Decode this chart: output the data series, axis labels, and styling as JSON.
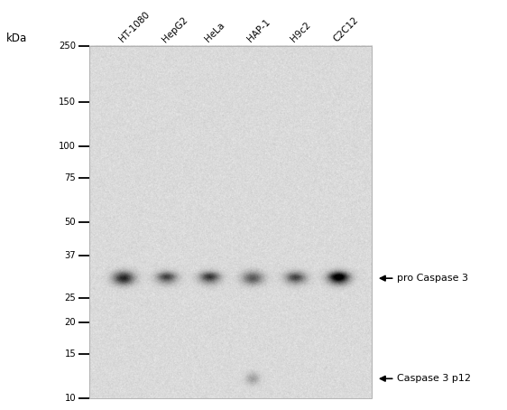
{
  "fig_width": 5.62,
  "fig_height": 4.54,
  "dpi": 100,
  "lane_labels": [
    "HT-1080",
    "HepG2",
    "HeLa",
    "HAP-1",
    "H9c2",
    "C2C12"
  ],
  "kda_label": "kDa",
  "mw_markers": [
    250,
    150,
    100,
    75,
    50,
    37,
    25,
    20,
    15,
    10
  ],
  "annotation1_text": "pro Caspase 3",
  "annotation2_text": "Caspase 3 p12",
  "noise_seed": 42,
  "text_color": "#000000",
  "blot_noise_mean": 0.855,
  "blot_noise_std": 0.03,
  "band1_intensities": [
    0.88,
    0.48,
    0.52,
    0.62,
    0.52,
    0.92
  ],
  "band2_intensities": [
    0.0,
    0.0,
    0.0,
    0.28,
    0.0,
    0.0
  ],
  "secondary_offsets": [
    0.0,
    0.018,
    0.018,
    0.0,
    0.012,
    0.018
  ],
  "secondary_ints": [
    0.0,
    0.28,
    0.32,
    0.0,
    0.22,
    0.4
  ]
}
